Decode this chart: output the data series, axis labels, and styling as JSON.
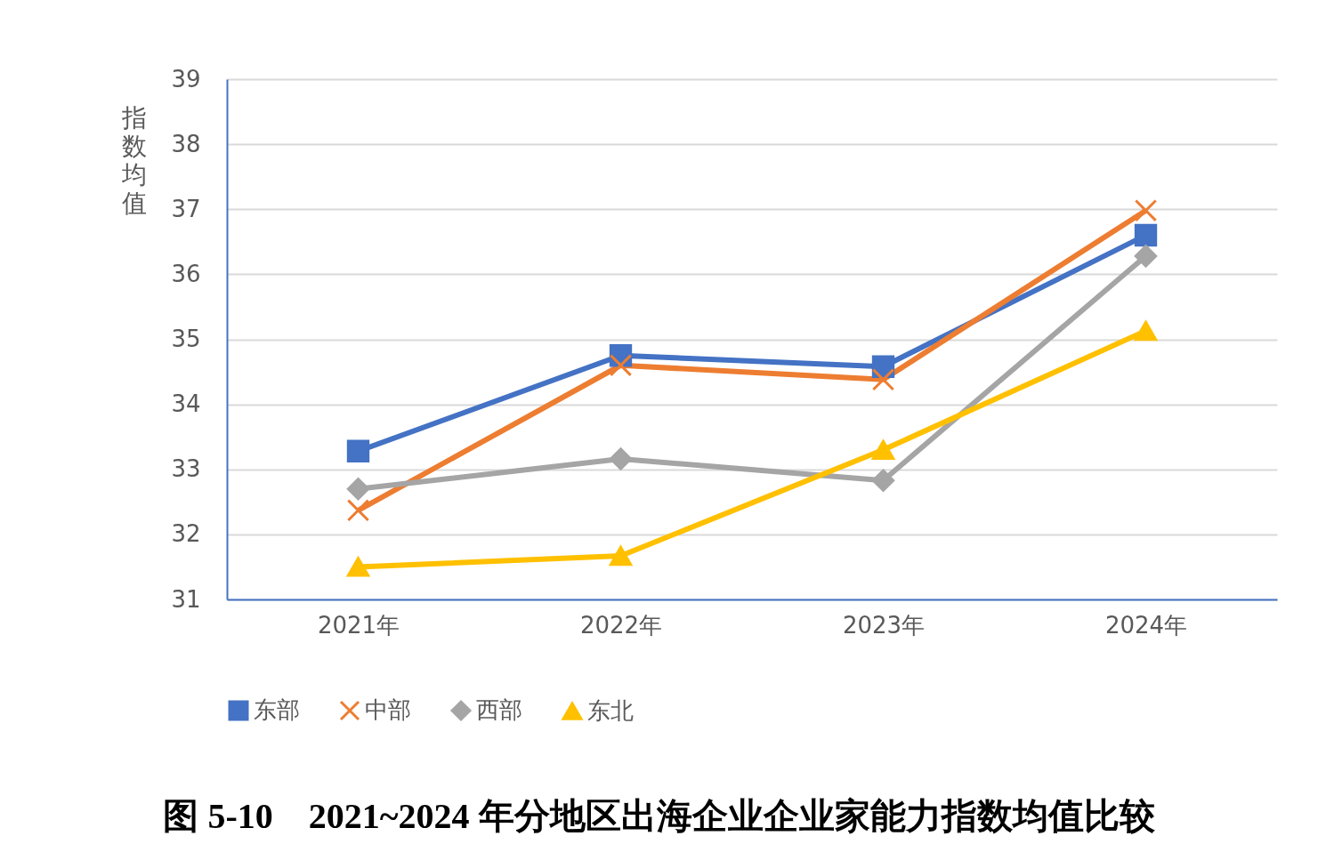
{
  "chart_data": {
    "type": "line",
    "title": "图 5-10　2021~2024 年分地区出海企业企业家能力指数均值比较",
    "ylabel": "指数均值",
    "categories": [
      "2021年",
      "2022年",
      "2023年",
      "2024年"
    ],
    "ylim": [
      31,
      39
    ],
    "yticks": [
      31,
      32,
      33,
      34,
      35,
      36,
      37,
      38,
      39
    ],
    "grid": "y",
    "legend": "bottom",
    "series": [
      {
        "name": "东部",
        "color": "#4472c4",
        "marker": "square",
        "values": [
          33.28,
          34.75,
          34.58,
          36.6
        ]
      },
      {
        "name": "中部",
        "color": "#ed7d31",
        "marker": "cross",
        "values": [
          32.37,
          34.6,
          34.38,
          36.98
        ]
      },
      {
        "name": "西部",
        "color": "#a5a5a5",
        "marker": "diamond",
        "values": [
          32.7,
          33.16,
          32.83,
          36.28
        ]
      },
      {
        "name": "东北",
        "color": "#ffc000",
        "marker": "triangle",
        "values": [
          31.5,
          31.67,
          33.3,
          35.13
        ]
      }
    ]
  }
}
